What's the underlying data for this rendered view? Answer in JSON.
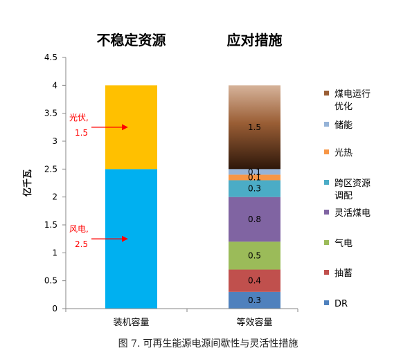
{
  "chart_data": {
    "type": "bar",
    "stacked": true,
    "ylabel": "亿千瓦",
    "ylim": [
      0,
      4.5
    ],
    "yticks": [
      "0",
      "0.5",
      "1",
      "1.5",
      "2",
      "2.5",
      "3",
      "3.5",
      "4",
      "4.5"
    ],
    "ytick_values": [
      0,
      0.5,
      1,
      1.5,
      2,
      2.5,
      3,
      3.5,
      4,
      4.5
    ],
    "categories": [
      "装机容量",
      "等效容量"
    ],
    "column_titles": [
      "不稳定资源",
      "应对措施"
    ],
    "bars": [
      {
        "category": "装机容量",
        "segments": [
          {
            "name": "风电",
            "value": 2.5,
            "color": "#00B0F0"
          },
          {
            "name": "光伏",
            "value": 1.5,
            "color": "#FFC000"
          }
        ],
        "annotations": [
          {
            "line1": "光伏,",
            "line2": "1.5",
            "value_at": 3.25
          },
          {
            "line1": "风电,",
            "line2": "2.5",
            "value_at": 1.25
          }
        ]
      },
      {
        "category": "等效容量",
        "segments": [
          {
            "name": "DR",
            "value": 0.3,
            "label": "0.3",
            "color": "#4F81BD"
          },
          {
            "name": "抽蓄",
            "value": 0.4,
            "label": "0.4",
            "color": "#C0504D"
          },
          {
            "name": "气电",
            "value": 0.5,
            "label": "0.5",
            "color": "#9BBB59"
          },
          {
            "name": "灵活煤电",
            "value": 0.8,
            "label": "0.8",
            "color": "#8064A2"
          },
          {
            "name": "跨区资源调配",
            "value": 0.3,
            "label": "0.3",
            "color": "#4BACC6"
          },
          {
            "name": "光热",
            "value": 0.1,
            "label": "0.1",
            "color": "#F79646"
          },
          {
            "name": "储能",
            "value": 0.1,
            "label": "0.1",
            "color": "#95B3D7"
          },
          {
            "name": "煤电运行优化",
            "value": 1.5,
            "label": "1.5",
            "color": "#8B5A2B",
            "gradient": [
              "#D6B39A",
              "#9A5E35",
              "#2E170A"
            ]
          }
        ]
      }
    ],
    "legend": [
      {
        "line1": "煤电运行",
        "line2": "优化",
        "color": "#9A5E35"
      },
      {
        "line1": "储能",
        "line2": "",
        "color": "#95B3D7"
      },
      {
        "line1": "光热",
        "line2": "",
        "color": "#F79646"
      },
      {
        "line1": "跨区资源",
        "line2": "调配",
        "color": "#4BACC6"
      },
      {
        "line1": "灵活煤电",
        "line2": "",
        "color": "#8064A2"
      },
      {
        "line1": "气电",
        "line2": "",
        "color": "#9BBB59"
      },
      {
        "line1": "抽蓄",
        "line2": "",
        "color": "#C0504D"
      },
      {
        "line1": "DR",
        "line2": "",
        "color": "#4F81BD"
      }
    ],
    "legend_position": "right",
    "annotation_color": "#FF0000"
  },
  "caption": {
    "figure_no": "图 7.",
    "text": "可再生能源电源间歇性与灵活性措施"
  }
}
